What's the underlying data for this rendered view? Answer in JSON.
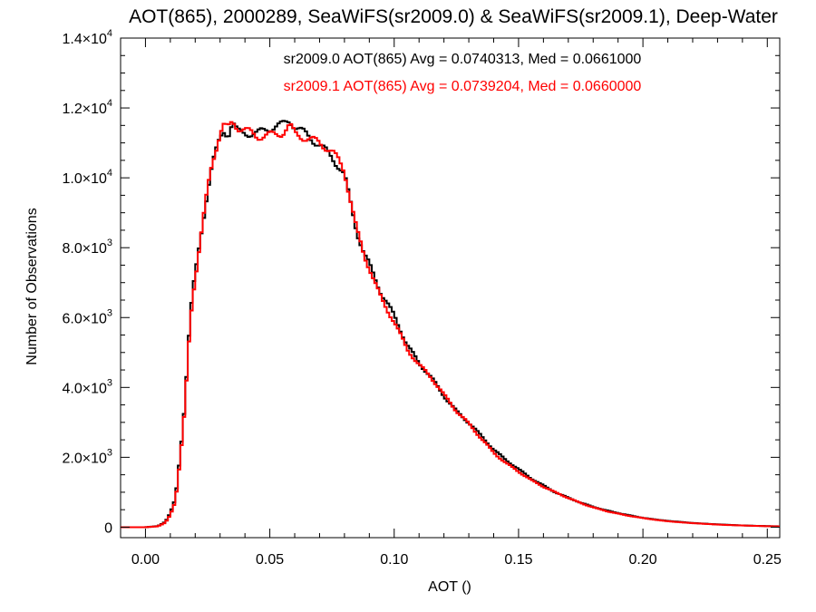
{
  "chart_data": {
    "type": "histogram",
    "title": "AOT(865), 2000289, SeaWiFS(sr2009.0) & SeaWiFS(sr2009.1), Deep-Water",
    "xlabel": "AOT ()",
    "ylabel": "Number of Observations",
    "xlim": [
      -0.01,
      0.255
    ],
    "ylim": [
      -300,
      14000
    ],
    "bin_width": 0.001,
    "x_ticks": [
      0.0,
      0.05,
      0.1,
      0.15,
      0.2,
      0.25
    ],
    "x_tick_labels": [
      "0.00",
      "0.05",
      "0.10",
      "0.15",
      "0.20",
      "0.25"
    ],
    "y_ticks": [
      0,
      2000,
      4000,
      6000,
      8000,
      10000,
      12000,
      14000
    ],
    "y_tick_labels": [
      {
        "mantissa": "0",
        "exp": ""
      },
      {
        "mantissa": "2.0×10",
        "exp": "3"
      },
      {
        "mantissa": "4.0×10",
        "exp": "3"
      },
      {
        "mantissa": "6.0×10",
        "exp": "3"
      },
      {
        "mantissa": "8.0×10",
        "exp": "3"
      },
      {
        "mantissa": "1.0×10",
        "exp": "4"
      },
      {
        "mantissa": "1.2×10",
        "exp": "4"
      },
      {
        "mantissa": "1.4×10",
        "exp": "4"
      }
    ],
    "grid": false,
    "annotations": [
      {
        "text": "sr2009.0 AOT(865) Avg = 0.0740313, Med = 0.0661000",
        "color": "#000000"
      },
      {
        "text": "sr2009.1 AOT(865) Avg = 0.0739204, Med = 0.0660000",
        "color": "#ff0000"
      }
    ],
    "series": [
      {
        "color": "#000000",
        "points": [
          [
            -0.01,
            0
          ],
          [
            0.0,
            0
          ],
          [
            0.005,
            30
          ],
          [
            0.008,
            150
          ],
          [
            0.01,
            400
          ],
          [
            0.012,
            800
          ],
          [
            0.013,
            1400
          ],
          [
            0.014,
            2100
          ],
          [
            0.015,
            2800
          ],
          [
            0.016,
            3700
          ],
          [
            0.017,
            4900
          ],
          [
            0.018,
            6000
          ],
          [
            0.019,
            6700
          ],
          [
            0.02,
            7200
          ],
          [
            0.021,
            7700
          ],
          [
            0.022,
            8200
          ],
          [
            0.023,
            8700
          ],
          [
            0.024,
            9200
          ],
          [
            0.025,
            9700
          ],
          [
            0.026,
            10100
          ],
          [
            0.027,
            10500
          ],
          [
            0.028,
            10700
          ],
          [
            0.029,
            11000
          ],
          [
            0.03,
            11200
          ],
          [
            0.031,
            11400
          ],
          [
            0.032,
            11500
          ],
          [
            0.033,
            11300
          ],
          [
            0.034,
            11500
          ],
          [
            0.035,
            11700
          ],
          [
            0.036,
            11550
          ],
          [
            0.037,
            11400
          ],
          [
            0.04,
            11350
          ],
          [
            0.045,
            11250
          ],
          [
            0.05,
            11350
          ],
          [
            0.055,
            11400
          ],
          [
            0.058,
            11550
          ],
          [
            0.06,
            11400
          ],
          [
            0.065,
            11200
          ],
          [
            0.07,
            11000
          ],
          [
            0.075,
            10700
          ],
          [
            0.078,
            10400
          ],
          [
            0.08,
            10150
          ],
          [
            0.082,
            9500
          ],
          [
            0.085,
            8500
          ],
          [
            0.088,
            7800
          ],
          [
            0.09,
            7500
          ],
          [
            0.095,
            6600
          ],
          [
            0.1,
            6000
          ],
          [
            0.105,
            5200
          ],
          [
            0.11,
            4700
          ],
          [
            0.115,
            4300
          ],
          [
            0.12,
            3800
          ],
          [
            0.125,
            3350
          ],
          [
            0.13,
            3000
          ],
          [
            0.135,
            2600
          ],
          [
            0.14,
            2200
          ],
          [
            0.145,
            1900
          ],
          [
            0.15,
            1650
          ],
          [
            0.155,
            1400
          ],
          [
            0.16,
            1200
          ],
          [
            0.165,
            1000
          ],
          [
            0.17,
            850
          ],
          [
            0.175,
            700
          ],
          [
            0.18,
            580
          ],
          [
            0.185,
            480
          ],
          [
            0.19,
            400
          ],
          [
            0.195,
            330
          ],
          [
            0.2,
            270
          ],
          [
            0.205,
            220
          ],
          [
            0.21,
            180
          ],
          [
            0.215,
            150
          ],
          [
            0.22,
            120
          ],
          [
            0.225,
            100
          ],
          [
            0.23,
            80
          ],
          [
            0.235,
            65
          ],
          [
            0.24,
            50
          ],
          [
            0.245,
            40
          ],
          [
            0.25,
            30
          ],
          [
            0.255,
            25
          ]
        ]
      },
      {
        "color": "#ff0000",
        "points": [
          [
            -0.01,
            0
          ],
          [
            0.0,
            0
          ],
          [
            0.005,
            25
          ],
          [
            0.008,
            130
          ],
          [
            0.01,
            360
          ],
          [
            0.012,
            740
          ],
          [
            0.013,
            1320
          ],
          [
            0.014,
            2000
          ],
          [
            0.015,
            2700
          ],
          [
            0.016,
            3600
          ],
          [
            0.017,
            4800
          ],
          [
            0.018,
            5900
          ],
          [
            0.019,
            6650
          ],
          [
            0.02,
            7150
          ],
          [
            0.021,
            7650
          ],
          [
            0.022,
            8150
          ],
          [
            0.023,
            8650
          ],
          [
            0.024,
            9150
          ],
          [
            0.025,
            9650
          ],
          [
            0.026,
            10050
          ],
          [
            0.027,
            10450
          ],
          [
            0.028,
            10650
          ],
          [
            0.029,
            10950
          ],
          [
            0.03,
            11150
          ],
          [
            0.031,
            11350
          ],
          [
            0.032,
            11400
          ],
          [
            0.033,
            11250
          ],
          [
            0.034,
            11400
          ],
          [
            0.035,
            11500
          ],
          [
            0.036,
            11450
          ],
          [
            0.037,
            11350
          ],
          [
            0.04,
            11300
          ],
          [
            0.045,
            11200
          ],
          [
            0.05,
            11300
          ],
          [
            0.055,
            11400
          ],
          [
            0.058,
            11600
          ],
          [
            0.06,
            11350
          ],
          [
            0.065,
            11150
          ],
          [
            0.07,
            10950
          ],
          [
            0.075,
            10650
          ],
          [
            0.078,
            10350
          ],
          [
            0.08,
            10100
          ],
          [
            0.082,
            9450
          ],
          [
            0.085,
            8450
          ],
          [
            0.088,
            7750
          ],
          [
            0.09,
            7450
          ],
          [
            0.095,
            6550
          ],
          [
            0.1,
            5950
          ],
          [
            0.105,
            5150
          ],
          [
            0.11,
            4650
          ],
          [
            0.115,
            4250
          ],
          [
            0.12,
            3750
          ],
          [
            0.125,
            3300
          ],
          [
            0.13,
            2950
          ],
          [
            0.135,
            2550
          ],
          [
            0.14,
            2150
          ],
          [
            0.145,
            1850
          ],
          [
            0.15,
            1600
          ],
          [
            0.155,
            1350
          ],
          [
            0.16,
            1150
          ],
          [
            0.165,
            980
          ],
          [
            0.17,
            830
          ],
          [
            0.175,
            690
          ],
          [
            0.18,
            570
          ],
          [
            0.185,
            470
          ],
          [
            0.19,
            390
          ],
          [
            0.195,
            320
          ],
          [
            0.2,
            260
          ],
          [
            0.205,
            210
          ],
          [
            0.21,
            170
          ],
          [
            0.215,
            140
          ],
          [
            0.22,
            115
          ],
          [
            0.225,
            95
          ],
          [
            0.23,
            75
          ],
          [
            0.235,
            60
          ],
          [
            0.24,
            48
          ],
          [
            0.245,
            38
          ],
          [
            0.25,
            28
          ],
          [
            0.255,
            22
          ]
        ]
      }
    ]
  }
}
